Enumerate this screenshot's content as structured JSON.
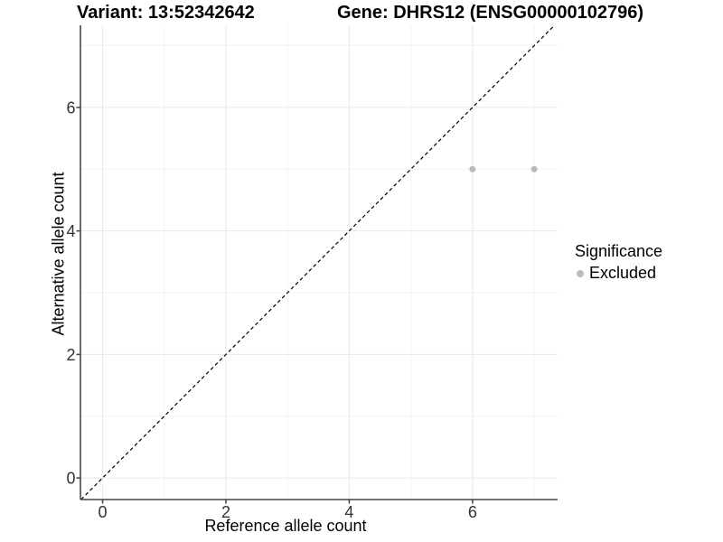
{
  "chart_data": {
    "type": "scatter",
    "title_left": "Variant: 13:52342642",
    "title_right": "Gene: DHRS12 (ENSG00000102796)",
    "xlabel": "Reference allele count",
    "ylabel": "Alternative allele count",
    "xlim": [
      -0.36,
      7.38
    ],
    "ylim": [
      -0.35,
      7.33
    ],
    "x_major_ticks": [
      0,
      2,
      4,
      6
    ],
    "x_minor_ticks": [
      1,
      3,
      5,
      7
    ],
    "y_major_ticks": [
      0,
      2,
      4,
      6
    ],
    "y_minor_ticks": [
      1,
      3,
      5,
      7
    ],
    "grid": "on",
    "series": [
      {
        "name": "Excluded",
        "color": "#bcbcbc",
        "points": [
          {
            "x": 6,
            "y": 5
          },
          {
            "x": 7,
            "y": 5
          }
        ]
      }
    ],
    "reference_line": {
      "type": "identity",
      "slope": 1,
      "intercept": 0,
      "style": "dashed",
      "color": "#000000"
    },
    "legend": {
      "title": "Significance",
      "position": "right",
      "items": [
        {
          "label": "Excluded",
          "color": "#bcbcbc"
        }
      ]
    },
    "colors": {
      "background": "#ffffff",
      "axis_line": "#474747",
      "tick_label": "#333333",
      "grid_major": "#e8e8e8",
      "grid_minor": "#f3f3f3"
    }
  }
}
